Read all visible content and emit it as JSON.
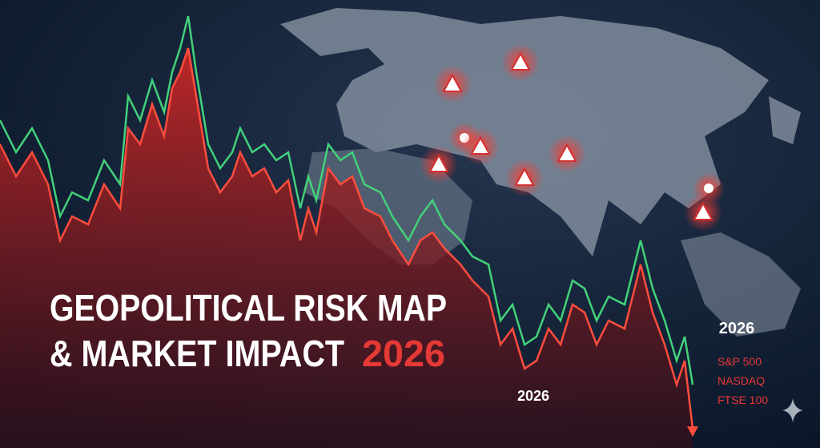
{
  "title": {
    "line1": "GEOPOLITICAL RISK MAP",
    "line2": "& MARKET IMPACT",
    "year": "2026"
  },
  "labels": {
    "center_year": "2026",
    "right_year": "2026"
  },
  "legend": [
    "S&P 500",
    "NASDAQ",
    "FTSE 100"
  ]
}
